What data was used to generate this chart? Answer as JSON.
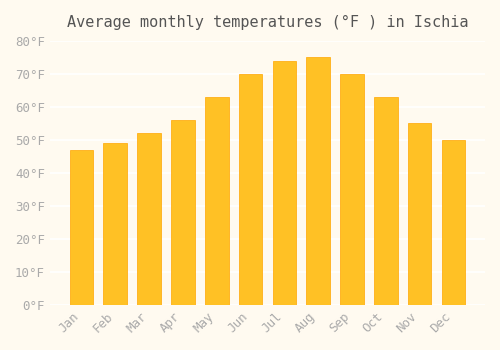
{
  "title": "Average monthly temperatures (°F ) in Ischia",
  "months": [
    "Jan",
    "Feb",
    "Mar",
    "Apr",
    "May",
    "Jun",
    "Jul",
    "Aug",
    "Sep",
    "Oct",
    "Nov",
    "Dec"
  ],
  "values": [
    47,
    49,
    52,
    56,
    63,
    70,
    74,
    75,
    70,
    63,
    55,
    50
  ],
  "bar_color_main": "#FFC125",
  "bar_color_edge": "#FFA500",
  "background_color": "#FFFAF0",
  "grid_color": "#FFFFFF",
  "text_color": "#AAAAAA",
  "title_color": "#555555",
  "ylim": [
    0,
    80
  ],
  "ytick_step": 10,
  "title_fontsize": 11,
  "tick_fontsize": 9
}
